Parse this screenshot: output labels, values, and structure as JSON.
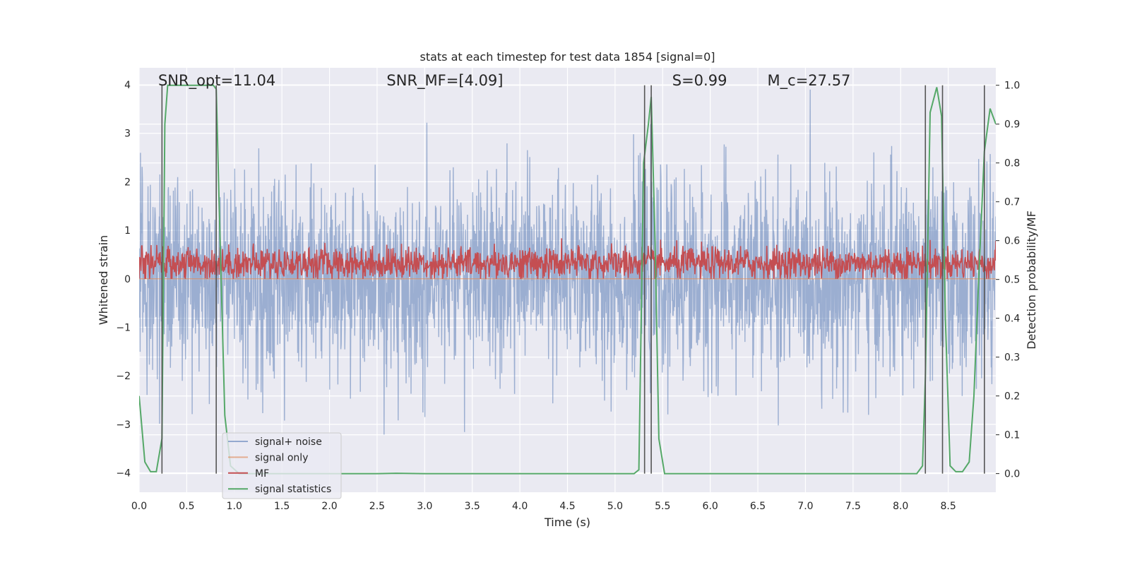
{
  "chart_data": {
    "type": "line",
    "title": "stats at each timestep for test data 1854 [signal=0]",
    "xlabel": "Time (s)",
    "ylabel": "Whitened strain",
    "y2label": "Detection probability/MF",
    "xlim": [
      0.0,
      9.0
    ],
    "ylim": [
      -4.4,
      4.35
    ],
    "y2lim": [
      -0.048,
      1.045
    ],
    "xticks": [
      "0.0",
      "0.5",
      "1.0",
      "1.5",
      "2.0",
      "2.5",
      "3.0",
      "3.5",
      "4.0",
      "4.5",
      "5.0",
      "5.5",
      "6.0",
      "6.5",
      "7.0",
      "7.5",
      "8.0",
      "8.5"
    ],
    "yticks": [
      "−4",
      "−3",
      "−2",
      "−1",
      "0",
      "1",
      "2",
      "3",
      "4"
    ],
    "y2ticks": [
      "0.0",
      "0.1",
      "0.2",
      "0.3",
      "0.4",
      "0.5",
      "0.6",
      "0.7",
      "0.8",
      "0.9",
      "1.0"
    ],
    "grid": true,
    "legend_position": "bottom-left",
    "annotations": [
      {
        "id": "snr-opt",
        "text": "SNR_opt=11.04",
        "x": 0.2
      },
      {
        "id": "snr-mf",
        "text": "SNR_MF=[4.09]",
        "x": 2.6
      },
      {
        "id": "s",
        "text": "S=0.99",
        "x": 5.6
      },
      {
        "id": "mc",
        "text": "M_c=27.57",
        "x": 6.6
      }
    ],
    "vertical_lines_x": [
      0.24,
      0.81,
      5.31,
      5.38,
      8.26,
      8.44,
      8.88
    ],
    "series": [
      {
        "name": "signal+ noise",
        "color": "#4c72b0",
        "axis": "left",
        "kind": "noise",
        "amplitude_std": 1.0,
        "range": [
          -4.0,
          3.9
        ]
      },
      {
        "name": "signal only",
        "color": "#dd8452",
        "axis": "left",
        "kind": "flat",
        "values_constant": 0.0
      },
      {
        "name": "MF",
        "color": "#c44e52",
        "axis": "left",
        "kind": "band",
        "range": [
          0.0,
          0.9
        ]
      },
      {
        "name": "signal statistics",
        "color": "#55a868",
        "axis": "right",
        "x": [
          0.0,
          0.06,
          0.12,
          0.18,
          0.24,
          0.27,
          0.3,
          0.36,
          0.5,
          0.65,
          0.78,
          0.81,
          0.84,
          0.9,
          0.96,
          1.05,
          1.2,
          1.5,
          2.0,
          2.5,
          2.7,
          3.0,
          4.0,
          5.0,
          5.15,
          5.2,
          5.25,
          5.3,
          5.35,
          5.38,
          5.42,
          5.46,
          5.52,
          6.0,
          7.0,
          8.0,
          8.17,
          8.23,
          8.26,
          8.31,
          8.38,
          8.43,
          8.47,
          8.52,
          8.58,
          8.65,
          8.72,
          8.77,
          8.82,
          8.88,
          8.94,
          9.0
        ],
        "y": [
          0.2,
          0.03,
          0.005,
          0.005,
          0.09,
          0.9,
          1.0,
          1.0,
          1.0,
          1.0,
          1.0,
          0.99,
          0.7,
          0.15,
          0.02,
          0.0,
          0.0,
          0.0,
          0.0,
          0.0,
          0.001,
          0.0,
          0.0,
          0.0,
          0.0,
          0.0,
          0.01,
          0.8,
          0.9,
          0.97,
          0.6,
          0.09,
          0.0,
          0.0,
          0.0,
          0.0,
          0.0,
          0.02,
          0.25,
          0.93,
          0.995,
          0.92,
          0.4,
          0.02,
          0.005,
          0.005,
          0.03,
          0.2,
          0.5,
          0.83,
          0.94,
          0.9
        ]
      }
    ]
  }
}
